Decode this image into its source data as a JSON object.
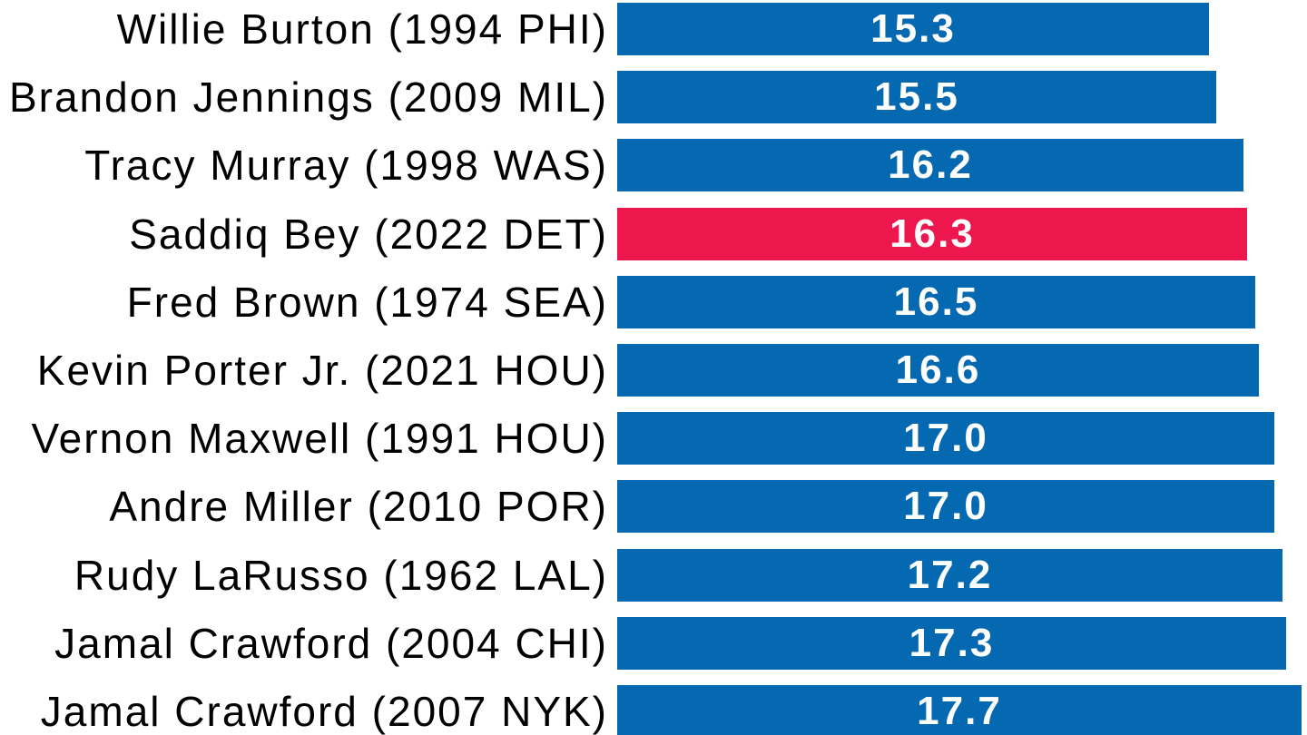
{
  "chart_data": {
    "type": "bar",
    "orientation": "horizontal",
    "title": "",
    "xlabel": "",
    "ylabel": "",
    "grid": false,
    "legend": false,
    "xlim": [
      0,
      17.7
    ],
    "categories": [
      "Willie Burton (1994 PHI)",
      "Brandon Jennings (2009 MIL)",
      "Tracy Murray (1998 WAS)",
      "Saddiq Bey (2022 DET)",
      "Fred Brown (1974 SEA)",
      "Kevin Porter Jr. (2021 HOU)",
      "Vernon Maxwell (1991 HOU)",
      "Andre Miller (2010 POR)",
      "Rudy LaRusso (1962 LAL)",
      "Jamal Crawford (2004 CHI)",
      "Jamal Crawford (2007 NYK)"
    ],
    "values": [
      15.3,
      15.5,
      16.2,
      16.3,
      16.5,
      16.6,
      17.0,
      17.0,
      17.2,
      17.3,
      17.7
    ],
    "value_labels": [
      "15.3",
      "15.5",
      "16.2",
      "16.3",
      "16.5",
      "16.6",
      "17.0",
      "17.0",
      "17.2",
      "17.3",
      "17.7"
    ],
    "highlight_index": 3,
    "highlight_category": "Saddiq Bey (2022 DET)",
    "colors": {
      "bar": "#0569B1",
      "highlight": "#EE174D",
      "category_text": "#000000",
      "value_text": "#FFFFFF",
      "background": "#FFFFFF"
    }
  }
}
